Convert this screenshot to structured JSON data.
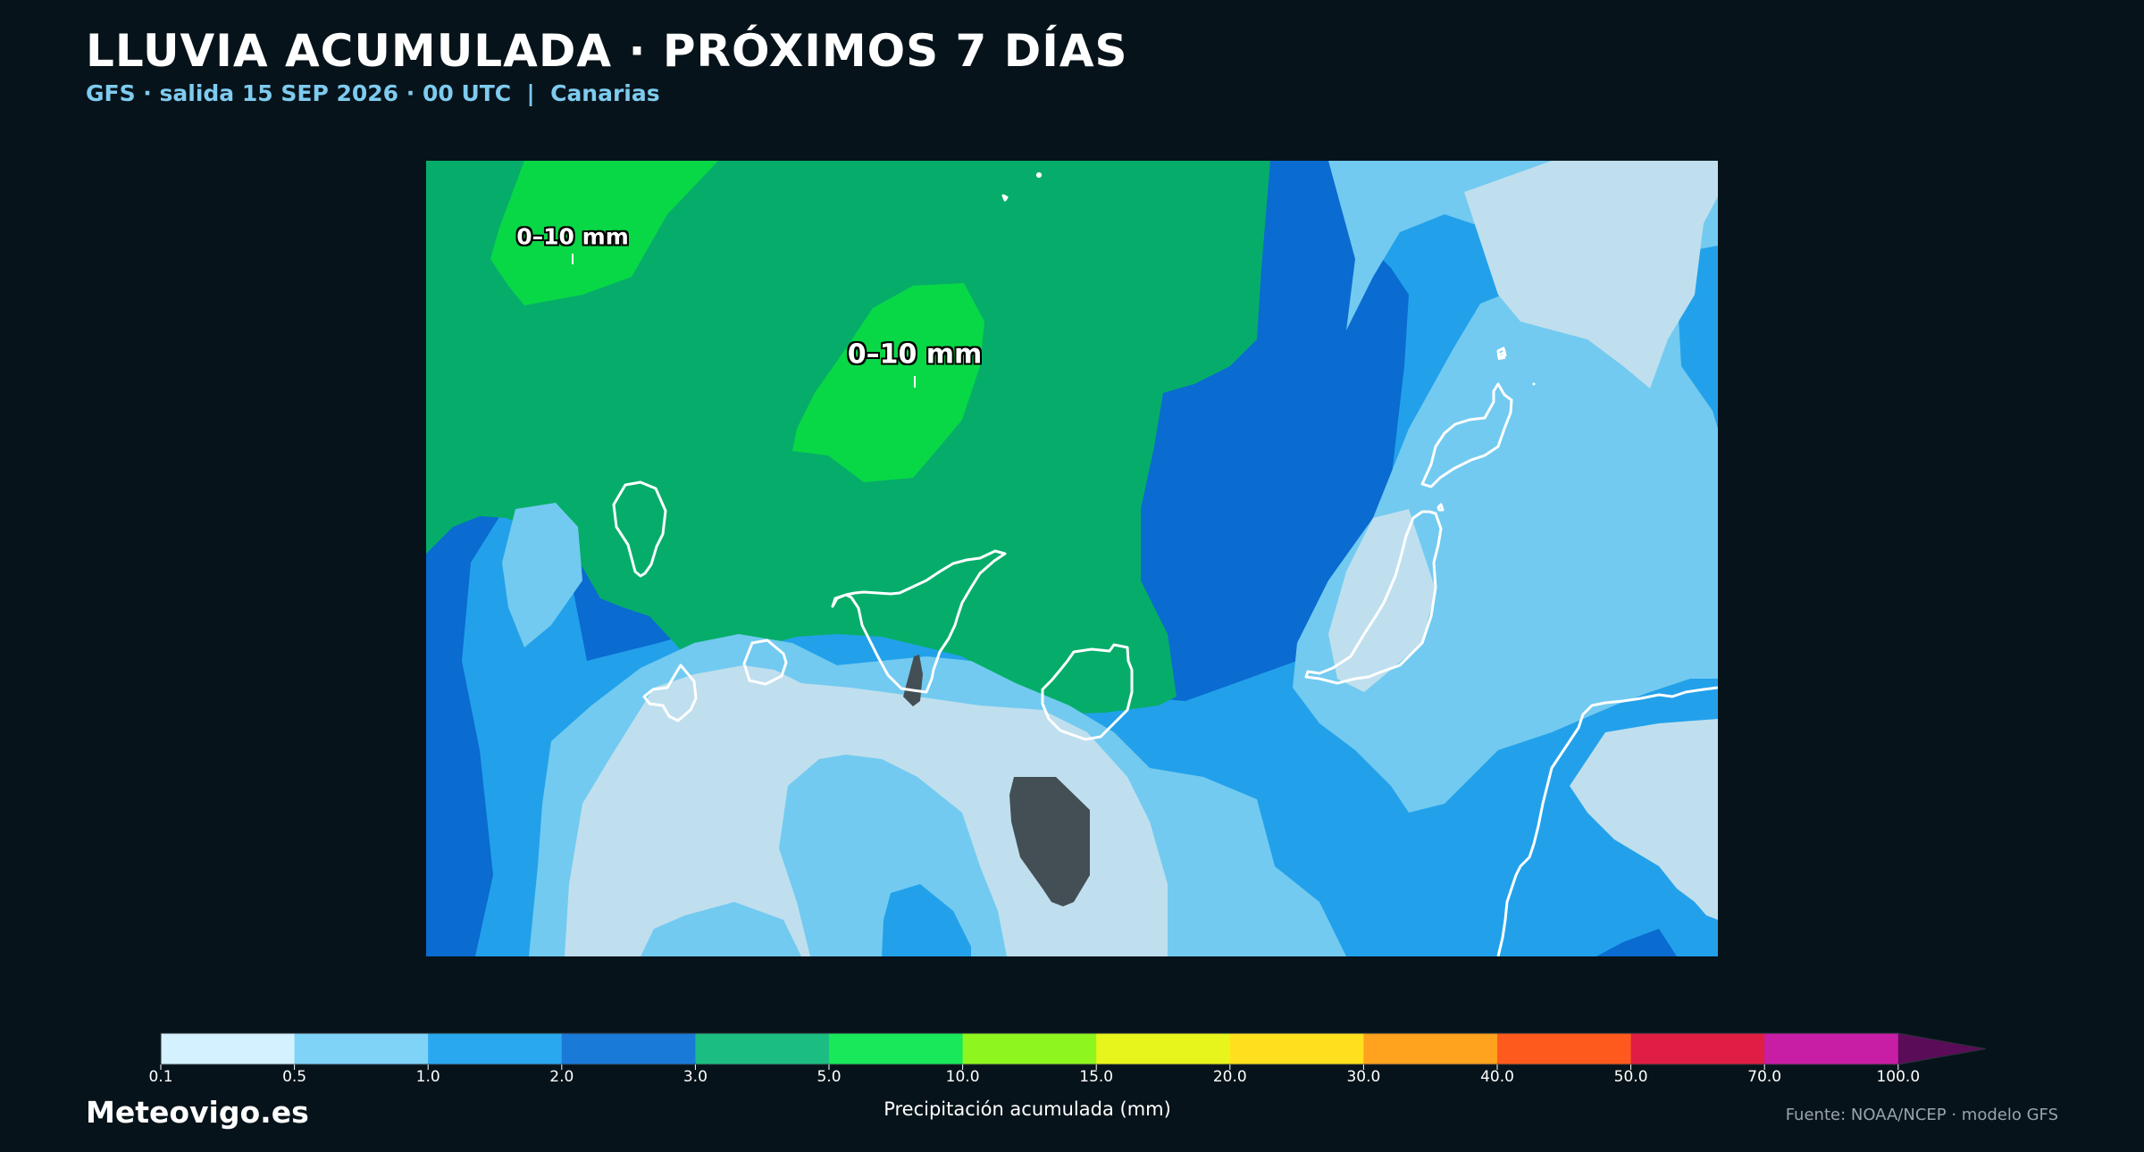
{
  "header": {
    "title": "LLUVIA ACUMULADA · PRÓXIMOS 7 DÍAS",
    "subtitle": "GFS · salida 15 SEP 2026 · 00 UTC  |  Canarias"
  },
  "map": {
    "region": "Canarias",
    "labels": [
      {
        "text": "0–10 mm"
      },
      {
        "text": "0–10 mm"
      }
    ]
  },
  "colorbar": {
    "ticks": [
      "0.1",
      "0.5",
      "1.0",
      "2.0",
      "3.0",
      "5.0",
      "10.0",
      "15.0",
      "20.0",
      "30.0",
      "40.0",
      "50.0",
      "70.0",
      "100.0"
    ],
    "colors": [
      "#d4f1ff",
      "#7fd3f7",
      "#2aa8ef",
      "#1a7ad8",
      "#1cbd82",
      "#18e85a",
      "#8ff51e",
      "#e8f51c",
      "#ffe01e",
      "#ffa21e",
      "#ff5a1e",
      "#e01e44",
      "#c81ea6"
    ],
    "extend_color": "#5a0c58",
    "caption": "Precipitación acumulada (mm)"
  },
  "map_colors": {
    "ocean_dark_green": "#06ad6a",
    "bright_green": "#08d846",
    "deep_blue": "#0a6bd1",
    "mid_blue": "#22a1ea",
    "light_blue": "#72caf0",
    "pale_blue": "#bfdfee",
    "mountain_gray": "#444f55"
  },
  "footer": {
    "brand": "Meteovigo.es",
    "source": "Fuente: NOAA/NCEP · modelo GFS"
  }
}
